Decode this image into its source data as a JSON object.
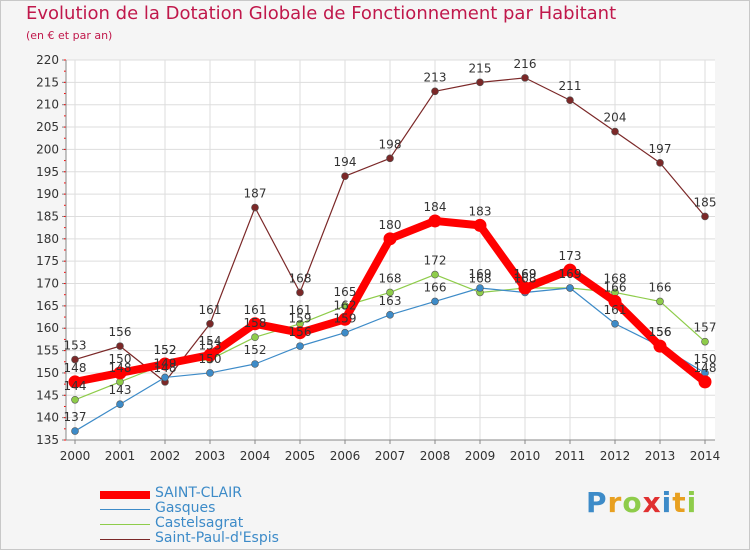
{
  "title": "Evolution de la Dotation Globale de Fonctionnement par Habitant",
  "subtitle": "(en € et par an)",
  "logo": "Proxiti",
  "colors": {
    "title": "#c0184b",
    "grid": "#dddddd",
    "axis": "#888888",
    "tick_mark_left": "#ff0000"
  },
  "chart_data": {
    "type": "line",
    "x": [
      2000,
      2001,
      2002,
      2003,
      2004,
      2005,
      2006,
      2007,
      2008,
      2009,
      2010,
      2011,
      2012,
      2013,
      2014
    ],
    "ylim": [
      135,
      220
    ],
    "yticks": [
      135,
      140,
      145,
      150,
      155,
      160,
      165,
      170,
      175,
      180,
      185,
      190,
      195,
      200,
      205,
      210,
      215,
      220
    ],
    "grid": true,
    "legend_position": "bottom-left",
    "series": [
      {
        "name": "Saint-Paul-d'Espis",
        "color": "#7b2828",
        "values": [
          153,
          156,
          148,
          161,
          187,
          168,
          194,
          198,
          213,
          215,
          216,
          211,
          204,
          197,
          185
        ],
        "labels": [
          "153",
          "156",
          "148",
          "161",
          "187",
          "168",
          "194",
          "198",
          "213",
          "215",
          "216",
          "211",
          "204",
          "197",
          "185"
        ]
      },
      {
        "name": "Castelsagrat",
        "color": "#8ecc4a",
        "values": [
          144,
          148,
          152,
          153,
          158,
          161,
          165,
          168,
          172,
          168,
          169,
          169,
          168,
          166,
          157
        ],
        "labels": [
          "144",
          "148",
          "152",
          "153",
          "158",
          "161",
          "165",
          "168",
          "172",
          "168",
          "169",
          "169",
          "168",
          "166",
          "157"
        ]
      },
      {
        "name": "Gasques",
        "color": "#3d8bc8",
        "values": [
          137,
          143,
          149,
          150,
          152,
          156,
          159,
          163,
          166,
          169,
          168,
          169,
          161,
          156,
          150
        ],
        "labels": [
          "137",
          "143",
          "149",
          "150",
          "152",
          "156",
          "159",
          "163",
          "166",
          "169",
          "168",
          "169",
          "161",
          "156",
          "150"
        ]
      },
      {
        "name": "SAINT-CLAIR",
        "color": "#ff0000",
        "values": [
          148,
          150,
          152,
          154,
          161,
          159,
          162,
          180,
          184,
          183,
          169,
          173,
          166,
          156,
          148
        ],
        "labels": [
          "148",
          "150",
          "152",
          "154",
          "161",
          "159",
          "162",
          "180",
          "184",
          "183",
          "169",
          "173",
          "166",
          "156",
          "148"
        ]
      }
    ],
    "legend": [
      "SAINT-CLAIR",
      "Gasques",
      "Castelsagrat",
      "Saint-Paul-d'Espis"
    ]
  }
}
